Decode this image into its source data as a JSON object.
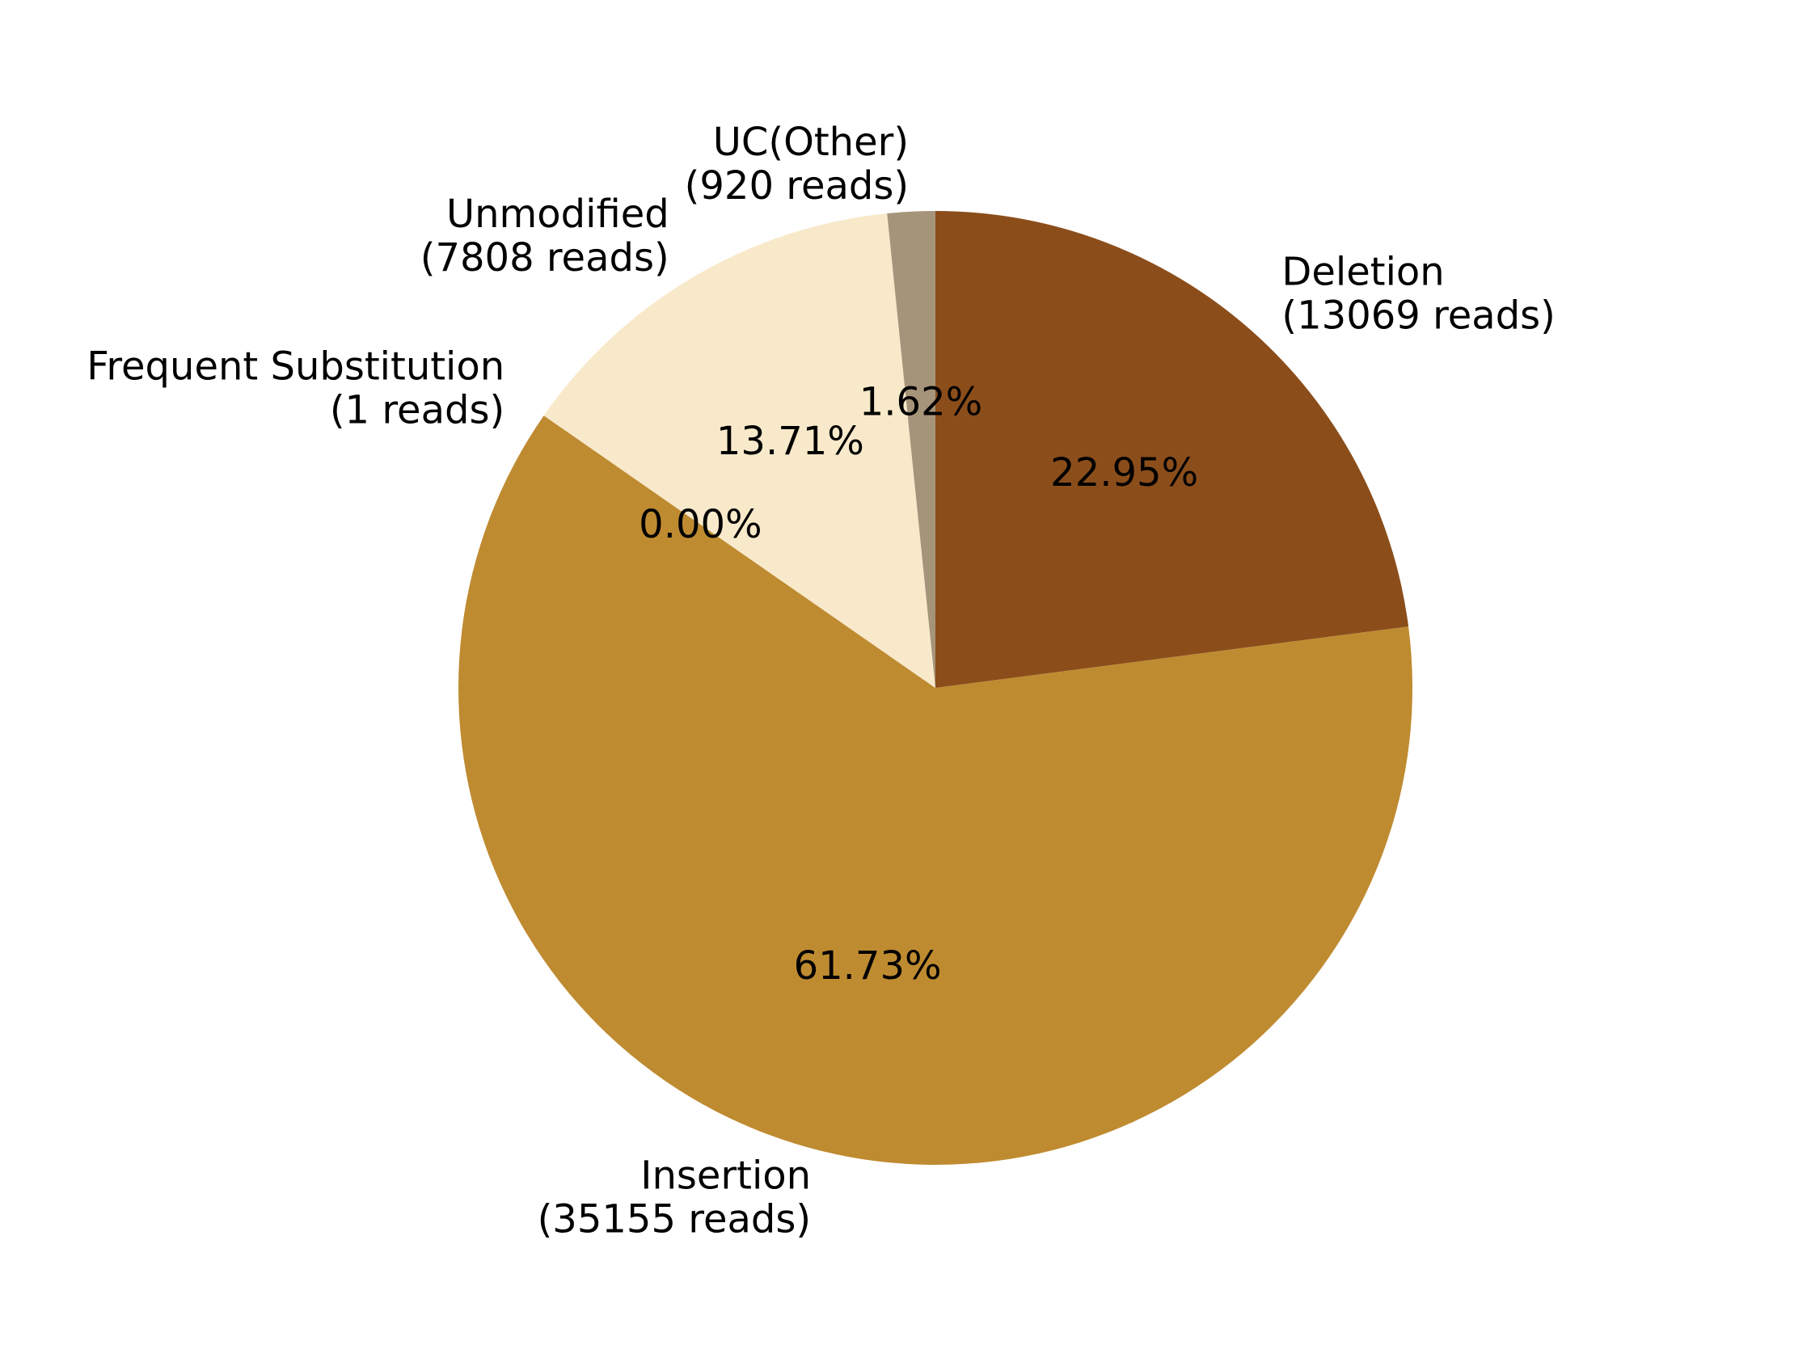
{
  "chart_data": {
    "type": "pie",
    "title": "",
    "start_angle_deg": 90,
    "direction": "clockwise",
    "slices": [
      {
        "label": "Deletion",
        "reads_label": "(13069 reads)",
        "reads": 13069,
        "percent_label": "22.95%",
        "color": "#8B4E1B"
      },
      {
        "label": "Insertion",
        "reads_label": "(35155 reads)",
        "reads": 35155,
        "percent_label": "61.73%",
        "color": "#BF8B31"
      },
      {
        "label": "Frequent Substitution",
        "reads_label": "(1 reads)",
        "reads": 1,
        "percent_label": "0.00%",
        "color": "#FFFFFF"
      },
      {
        "label": "Unmodified",
        "reads_label": "(7808 reads)",
        "reads": 7808,
        "percent_label": "13.71%",
        "color": "#F8E9CA"
      },
      {
        "label": "UC(Other)",
        "reads_label": "(920 reads)",
        "reads": 920,
        "percent_label": "1.62%",
        "color": "#A6947A"
      }
    ]
  }
}
